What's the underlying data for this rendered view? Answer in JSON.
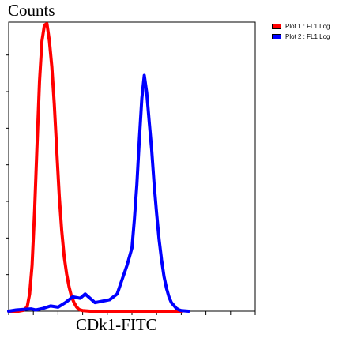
{
  "chart_data": {
    "type": "line",
    "title": "",
    "xlabel": "CDk1-FITC",
    "ylabel": "Counts",
    "xlim": [
      0,
      1
    ],
    "ylim": [
      0,
      1
    ],
    "x_log": true,
    "grid": false,
    "legend_placement": "outside-top-right",
    "series": [
      {
        "name": "Plot 1 : FL1 Log",
        "color": "#ff0000",
        "points": [
          [
            0.0,
            0.0
          ],
          [
            0.04,
            0.0
          ],
          [
            0.06,
            0.003
          ],
          [
            0.075,
            0.015
          ],
          [
            0.085,
            0.06
          ],
          [
            0.095,
            0.16
          ],
          [
            0.105,
            0.35
          ],
          [
            0.115,
            0.58
          ],
          [
            0.125,
            0.8
          ],
          [
            0.135,
            0.94
          ],
          [
            0.145,
            0.995
          ],
          [
            0.155,
            1.0
          ],
          [
            0.165,
            0.94
          ],
          [
            0.175,
            0.85
          ],
          [
            0.185,
            0.72
          ],
          [
            0.195,
            0.56
          ],
          [
            0.205,
            0.4
          ],
          [
            0.215,
            0.28
          ],
          [
            0.225,
            0.19
          ],
          [
            0.235,
            0.13
          ],
          [
            0.245,
            0.085
          ],
          [
            0.255,
            0.05
          ],
          [
            0.265,
            0.03
          ],
          [
            0.275,
            0.015
          ],
          [
            0.285,
            0.006
          ],
          [
            0.3,
            0.002
          ],
          [
            0.33,
            0.0
          ],
          [
            0.7,
            0.0
          ]
        ]
      },
      {
        "name": "Plot 2 : FL1 Log",
        "color": "#0000ff",
        "points": [
          [
            0.0,
            0.0
          ],
          [
            0.03,
            0.004
          ],
          [
            0.06,
            0.006
          ],
          [
            0.09,
            0.008
          ],
          [
            0.11,
            0.004
          ],
          [
            0.14,
            0.01
          ],
          [
            0.17,
            0.018
          ],
          [
            0.2,
            0.014
          ],
          [
            0.23,
            0.03
          ],
          [
            0.26,
            0.05
          ],
          [
            0.29,
            0.045
          ],
          [
            0.31,
            0.06
          ],
          [
            0.33,
            0.045
          ],
          [
            0.35,
            0.03
          ],
          [
            0.38,
            0.035
          ],
          [
            0.41,
            0.04
          ],
          [
            0.44,
            0.06
          ],
          [
            0.46,
            0.11
          ],
          [
            0.48,
            0.16
          ],
          [
            0.5,
            0.22
          ],
          [
            0.51,
            0.32
          ],
          [
            0.52,
            0.44
          ],
          [
            0.53,
            0.6
          ],
          [
            0.54,
            0.74
          ],
          [
            0.55,
            0.82
          ],
          [
            0.56,
            0.76
          ],
          [
            0.57,
            0.66
          ],
          [
            0.58,
            0.56
          ],
          [
            0.59,
            0.44
          ],
          [
            0.6,
            0.34
          ],
          [
            0.61,
            0.25
          ],
          [
            0.62,
            0.18
          ],
          [
            0.63,
            0.12
          ],
          [
            0.64,
            0.08
          ],
          [
            0.65,
            0.05
          ],
          [
            0.66,
            0.03
          ],
          [
            0.67,
            0.02
          ],
          [
            0.68,
            0.01
          ],
          [
            0.69,
            0.005
          ],
          [
            0.7,
            0.002
          ],
          [
            0.73,
            0.0
          ]
        ]
      }
    ]
  }
}
